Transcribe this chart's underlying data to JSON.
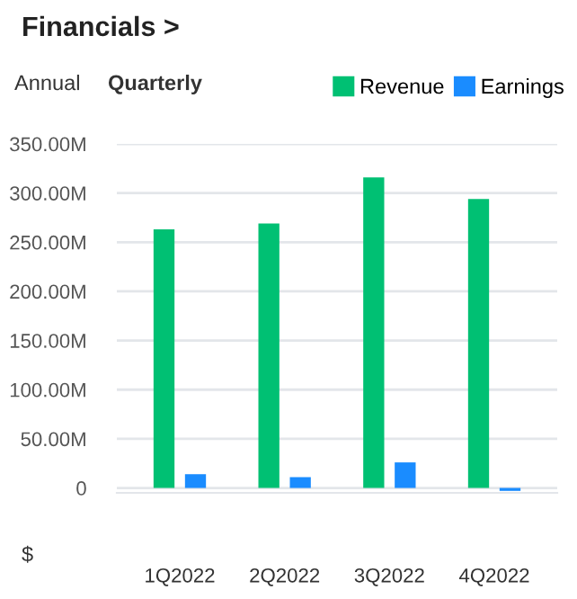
{
  "chart_data": {
    "type": "bar",
    "title": "Financials >",
    "annotations": [
      "Annual",
      "Quarterly",
      "$"
    ],
    "categories": [
      "1Q2022",
      "2Q2022",
      "3Q2022",
      "4Q2022"
    ],
    "series": [
      {
        "name": "Revenue",
        "color": "#00c073",
        "values": [
          263,
          269,
          316,
          294
        ]
      },
      {
        "name": "Earnings",
        "color": "#1a8cff",
        "values": [
          14,
          11,
          26,
          -3
        ]
      }
    ],
    "ylim": [
      -5,
      350
    ],
    "yticks": [
      0,
      {
        "value": 50,
        "label": "50.00M"
      },
      {
        "value": 100,
        "label": "100.00M"
      },
      {
        "value": 150,
        "label": "150.00M"
      },
      {
        "value": 200,
        "label": "200.00M"
      },
      {
        "value": 250,
        "label": "250.00M"
      },
      {
        "value": 300,
        "label": "300.00M"
      },
      {
        "value": 350,
        "label": "350.00M"
      }
    ],
    "grid": "y",
    "legend": "top right"
  }
}
